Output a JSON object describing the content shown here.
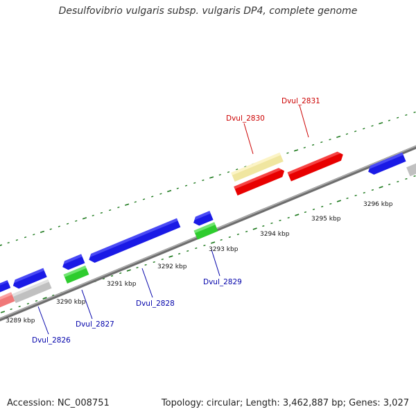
{
  "title": "Desulfovibrio vulgaris subsp. vulgaris DP4, complete genome",
  "accession": "Accession: NC_008751",
  "summary": "Topology: circular; Length: 3,462,887 bp; Genes: 3,027",
  "colors": {
    "backbone": "#8c8c8c",
    "tick": "#1e7a1e",
    "forward_gene": "#e80000",
    "reverse_gene": "#1a1ae6",
    "rna_gene": "#2ecc2e",
    "pseudo_gene": "#c8c8c8",
    "pale_gene": "#f0e6a0",
    "pink_gene": "#f07878",
    "forward_label": "#cc0000",
    "reverse_label": "#0000aa"
  },
  "scale_labels": [
    {
      "id": "kbp-3289",
      "text": "3289 kbp"
    },
    {
      "id": "kbp-3290",
      "text": "3290 kbp"
    },
    {
      "id": "kbp-3291",
      "text": "3291 kbp"
    },
    {
      "id": "kbp-3292",
      "text": "3292 kbp"
    },
    {
      "id": "kbp-3293",
      "text": "3293 kbp"
    },
    {
      "id": "kbp-3294",
      "text": "3294 kbp"
    },
    {
      "id": "kbp-3295",
      "text": "3295 kbp"
    },
    {
      "id": "kbp-3296",
      "text": "3296 kbp"
    }
  ],
  "gene_labels": [
    {
      "id": "dvul-2826",
      "text": "Dvul_2826",
      "strand": "reverse"
    },
    {
      "id": "dvul-2827",
      "text": "Dvul_2827",
      "strand": "reverse"
    },
    {
      "id": "dvul-2828",
      "text": "Dvul_2828",
      "strand": "reverse"
    },
    {
      "id": "dvul-2829",
      "text": "Dvul_2829",
      "strand": "reverse"
    },
    {
      "id": "dvul-2830",
      "text": "Dvul_2830",
      "strand": "forward"
    },
    {
      "id": "dvul-2831",
      "text": "Dvul_2831",
      "strand": "forward"
    }
  ]
}
